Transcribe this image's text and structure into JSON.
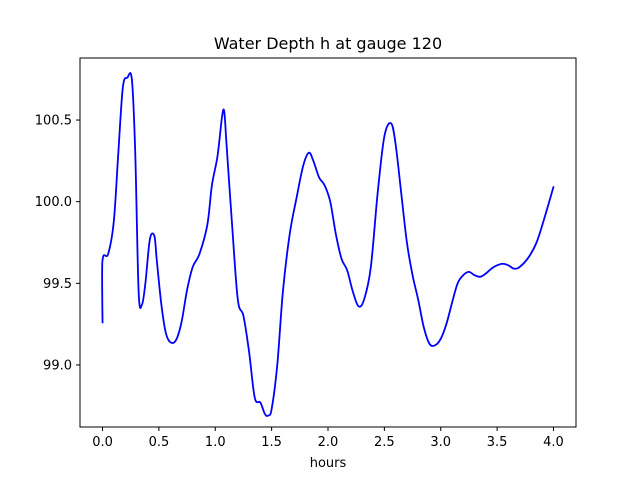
{
  "chart_data": {
    "type": "line",
    "title": "Water Depth h at gauge 120",
    "xlabel": "hours",
    "ylabel": "",
    "xlim": [
      -0.2,
      4.2
    ],
    "ylim": [
      98.62,
      100.88
    ],
    "x_ticks": [
      0.0,
      0.5,
      1.0,
      1.5,
      2.0,
      2.5,
      3.0,
      3.5,
      4.0
    ],
    "x_tick_labels": [
      "0.0",
      "0.5",
      "1.0",
      "1.5",
      "2.0",
      "2.5",
      "3.0",
      "3.5",
      "4.0"
    ],
    "y_ticks": [
      99.0,
      99.5,
      100.0,
      100.5
    ],
    "y_tick_labels": [
      "99.0",
      "99.5",
      "100.0",
      "100.5"
    ],
    "grid": false,
    "legend": "none",
    "series": [
      {
        "color": "#0000ff",
        "x": [
          0.0,
          0.0,
          0.05,
          0.1,
          0.14,
          0.18,
          0.22,
          0.26,
          0.29,
          0.32,
          0.35,
          0.38,
          0.42,
          0.46,
          0.48,
          0.52,
          0.56,
          0.6,
          0.65,
          0.7,
          0.75,
          0.8,
          0.86,
          0.93,
          0.97,
          1.02,
          1.06,
          1.08,
          1.1,
          1.15,
          1.2,
          1.25,
          1.3,
          1.35,
          1.4,
          1.44,
          1.47,
          1.5,
          1.55,
          1.6,
          1.66,
          1.72,
          1.78,
          1.83,
          1.87,
          1.92,
          1.97,
          2.02,
          2.07,
          2.12,
          2.17,
          2.22,
          2.27,
          2.32,
          2.38,
          2.44,
          2.5,
          2.56,
          2.6,
          2.65,
          2.7,
          2.75,
          2.8,
          2.85,
          2.9,
          2.95,
          3.0,
          3.05,
          3.1,
          3.15,
          3.2,
          3.25,
          3.3,
          3.35,
          3.4,
          3.45,
          3.5,
          3.55,
          3.6,
          3.65,
          3.7,
          3.78,
          3.85,
          3.92,
          4.0
        ],
        "y": [
          99.26,
          99.64,
          99.68,
          99.88,
          100.3,
          100.7,
          100.76,
          100.75,
          100.3,
          99.45,
          99.37,
          99.5,
          99.77,
          99.79,
          99.65,
          99.38,
          99.2,
          99.14,
          99.15,
          99.26,
          99.46,
          99.6,
          99.68,
          99.86,
          100.1,
          100.28,
          100.52,
          100.55,
          100.35,
          99.85,
          99.4,
          99.3,
          99.08,
          98.8,
          98.77,
          98.7,
          98.69,
          98.73,
          99.0,
          99.45,
          99.8,
          100.02,
          100.22,
          100.3,
          100.25,
          100.15,
          100.1,
          100.0,
          99.8,
          99.65,
          99.58,
          99.45,
          99.36,
          99.4,
          99.6,
          100.05,
          100.4,
          100.48,
          100.35,
          100.05,
          99.75,
          99.55,
          99.4,
          99.23,
          99.13,
          99.12,
          99.16,
          99.25,
          99.38,
          99.5,
          99.55,
          99.57,
          99.55,
          99.54,
          99.56,
          99.59,
          99.61,
          99.62,
          99.61,
          99.59,
          99.6,
          99.66,
          99.75,
          99.9,
          100.09
        ]
      }
    ]
  }
}
